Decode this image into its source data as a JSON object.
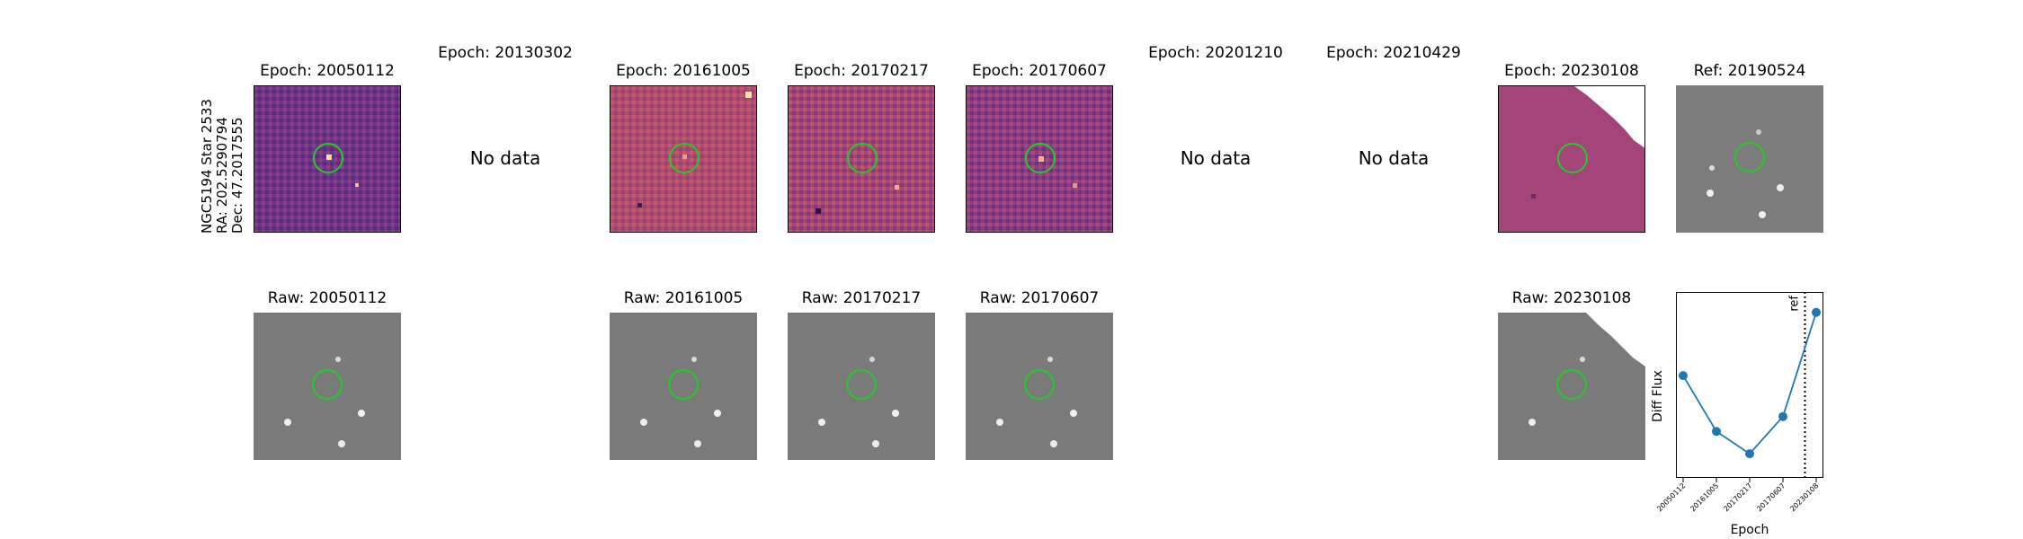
{
  "star_label": {
    "line1": "NGC5194 Star 2533",
    "line2": "RA: 202.5290794",
    "line3": "Dec: 47.2017555"
  },
  "top_row": [
    {
      "title": "Epoch: 20050112",
      "has_data": true
    },
    {
      "title": "Epoch: 20130302",
      "has_data": false,
      "message": "No data"
    },
    {
      "title": "Epoch: 20161005",
      "has_data": true
    },
    {
      "title": "Epoch: 20170217",
      "has_data": true
    },
    {
      "title": "Epoch: 20170607",
      "has_data": true
    },
    {
      "title": "Epoch: 20201210",
      "has_data": false,
      "message": "No data"
    },
    {
      "title": "Epoch: 20210429",
      "has_data": false,
      "message": "No data"
    },
    {
      "title": "Epoch: 20230108",
      "has_data": true
    },
    {
      "title": "Ref: 20190524",
      "has_data": true
    }
  ],
  "bottom_row": [
    {
      "title": "Raw: 20050112"
    },
    {
      "title": "Raw: 20161005"
    },
    {
      "title": "Raw: 20170217"
    },
    {
      "title": "Raw: 20170607"
    },
    {
      "title": "Raw: 20230108"
    }
  ],
  "colors": {
    "marker_circle": "#22cc22",
    "series": "#1f77b4",
    "diff_colormap_mid": "#7a3a86"
  },
  "chart_data": {
    "type": "line",
    "xlabel": "Epoch",
    "ylabel": "Diff Flux",
    "x": [
      "20050112",
      "20161005",
      "20170217",
      "20170607",
      "20230108"
    ],
    "series": [
      {
        "values": [
          0.55,
          0.25,
          0.13,
          0.33,
          0.89
        ]
      }
    ],
    "ref_marker": {
      "label": "ref",
      "position": "between 20170607 and 20230108"
    },
    "yticks_shown": false,
    "grid": false
  }
}
